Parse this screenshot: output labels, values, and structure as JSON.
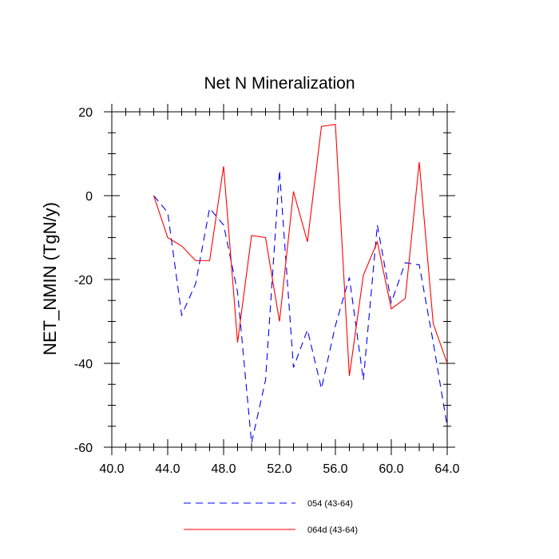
{
  "chart_data": {
    "type": "line",
    "title": "Net N Mineralization",
    "xlabel": "",
    "ylabel": "NET_NMIN  (TgN/y)",
    "xlim": [
      40,
      64
    ],
    "ylim": [
      -60,
      20
    ],
    "x_ticks": [
      40,
      44,
      48,
      52,
      56,
      60,
      64
    ],
    "x_tick_labels": [
      "40.0",
      "44.0",
      "48.0",
      "52.0",
      "56.0",
      "60.0",
      "64.0"
    ],
    "y_ticks": [
      -60,
      -40,
      -20,
      0,
      20
    ],
    "y_tick_labels": [
      "-60",
      "-40",
      "-20",
      "0",
      "20"
    ],
    "x_minor_step": 1,
    "y_minor_step": 5,
    "x": [
      43,
      44,
      45,
      46,
      47,
      48,
      49,
      50,
      51,
      52,
      53,
      54,
      55,
      56,
      57,
      58,
      59,
      60,
      61,
      62,
      63,
      64
    ],
    "series": [
      {
        "name": "054 (43-64)",
        "color": "#0000ff",
        "style": "dashed",
        "values": [
          0,
          -4,
          -28.5,
          -21,
          -3,
          -7,
          -23,
          -59,
          -44,
          6,
          -41,
          -32,
          -46,
          -31,
          -19.5,
          -44,
          -7,
          -25.5,
          -16,
          -16.5,
          -35,
          -55
        ]
      },
      {
        "name": "064d (43-64)",
        "color": "#ff0000",
        "style": "solid",
        "values": [
          0,
          -10,
          -12,
          -15.5,
          -15.5,
          7,
          -35,
          -9.5,
          -10,
          -30,
          1,
          -11,
          16.5,
          17,
          -43,
          -19,
          -11,
          -27,
          -24.5,
          8,
          -30.5,
          -40
        ]
      }
    ],
    "legend_position": "bottom-center"
  }
}
